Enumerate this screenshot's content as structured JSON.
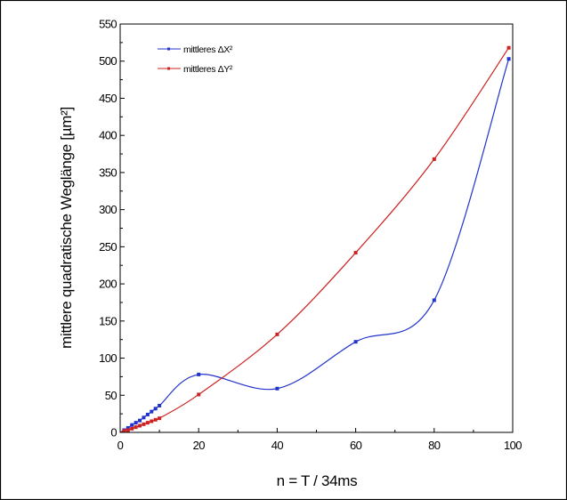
{
  "chart_data": {
    "type": "line",
    "xlabel": "n = T / 34ms",
    "ylabel": "mittlere quadratische Weglänge [µm²]",
    "xlim": [
      0,
      100
    ],
    "ylim": [
      0,
      550
    ],
    "x_ticks": [
      "0",
      "20",
      "40",
      "60",
      "80",
      "100"
    ],
    "y_ticks": [
      "0",
      "50",
      "100",
      "150",
      "200",
      "250",
      "300",
      "350",
      "400",
      "450",
      "500",
      "550"
    ],
    "grid": false,
    "legend_position": "top-left",
    "series": [
      {
        "name": "mittleres ΔX²",
        "color": "#2233cc",
        "x": [
          1,
          2,
          3,
          4,
          5,
          6,
          7,
          8,
          9,
          10,
          20,
          40,
          60,
          80,
          99
        ],
        "y": [
          3,
          6,
          10,
          13,
          16,
          20,
          24,
          28,
          32,
          36,
          78,
          59,
          122,
          178,
          503
        ]
      },
      {
        "name": "mittleres ΔY²",
        "color": "#cc2222",
        "x": [
          1,
          2,
          3,
          4,
          5,
          6,
          7,
          8,
          9,
          10,
          20,
          40,
          60,
          80,
          99
        ],
        "y": [
          2,
          3,
          5,
          7,
          9,
          11,
          13,
          15,
          17,
          19,
          51,
          132,
          242,
          368,
          518
        ]
      }
    ]
  }
}
